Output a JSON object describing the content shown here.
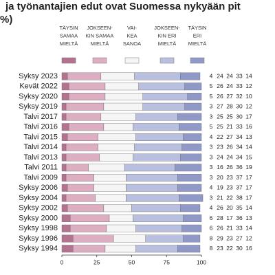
{
  "chart_data": {
    "type": "stacked-bar",
    "orientation": "horizontal",
    "title": "ja työnantajien edut ovat Suomessa nykyään pit",
    "subtitle": "%)",
    "categories": [
      "Syksy 2023",
      "Kevät 2022",
      "Syksy 2020",
      "Syksy 2019",
      "Talvi 2017",
      "Talvi 2016",
      "Talvi 2015",
      "Talvi 2014",
      "Talvi 2013",
      "Talvi 2011",
      "Talvi 2009",
      "Syksy 2006",
      "Syksy 2004",
      "Syksy 2002",
      "Syksy 2000",
      "Syksy 1998",
      "Syksy 1996",
      "Syksy 1994"
    ],
    "series": [
      {
        "name": "TÄYSIN\nSAMAA\nMIELTÄ",
        "color": "#b3728e",
        "values": [
          4,
          5,
          5,
          3,
          3,
          5,
          4,
          3,
          3,
          3,
          3,
          4,
          3,
          4,
          6,
          6,
          8,
          8
        ]
      },
      {
        "name": "JOKSEEN-\nKIN SAMAA\nMIELTÄ",
        "color": "#ddadc2",
        "values": [
          24,
          26,
          26,
          27,
          25,
          25,
          22,
          23,
          24,
          16,
          20,
          19,
          21,
          26,
          28,
          26,
          29,
          23
        ]
      },
      {
        "name": "VAI-\nKEA\nSANOA",
        "color": "#f5f5f5",
        "values": [
          24,
          24,
          27,
          28,
          25,
          21,
          27,
          26,
          24,
          26,
          23,
          23,
          22,
          20,
          17,
          21,
          23,
          22
        ]
      },
      {
        "name": "JOKSEEN-\nKIN ERI\nMIELTÄ",
        "color": "#b9bfde",
        "values": [
          33,
          33,
          32,
          30,
          30,
          33,
          34,
          34,
          34,
          36,
          37,
          37,
          38,
          35,
          36,
          33,
          27,
          30
        ]
      },
      {
        "name": "TÄYSIN\nERI\nMIELTÄ",
        "color": "#9098c8",
        "values": [
          14,
          12,
          10,
          12,
          17,
          16,
          13,
          14,
          15,
          19,
          17,
          17,
          17,
          14,
          13,
          14,
          12,
          16
        ]
      }
    ],
    "xlim": [
      0,
      100
    ],
    "xticks": [
      0,
      25,
      50,
      75,
      100
    ]
  }
}
